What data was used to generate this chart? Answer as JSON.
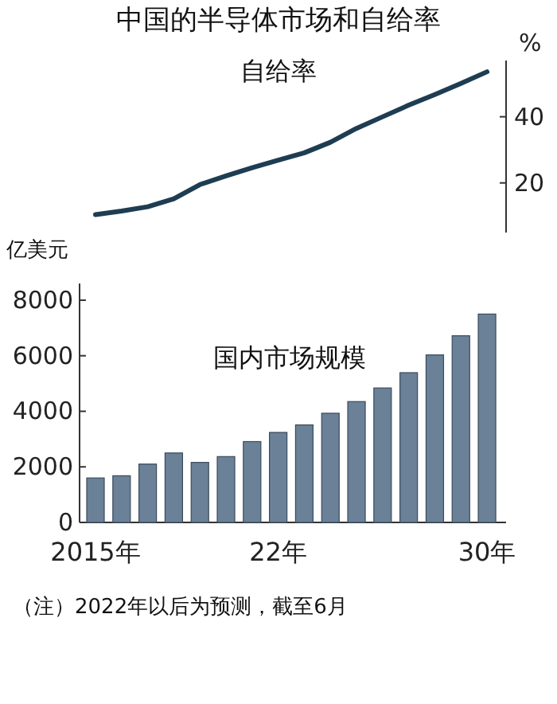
{
  "chart_data": [
    {
      "type": "line",
      "title": "中国的半导体市场和自给率",
      "ylabel": "%",
      "categories": [
        null,
        null,
        null,
        null,
        null,
        null,
        null,
        null,
        null,
        null,
        null,
        null,
        null,
        null,
        null,
        null
      ],
      "ylim": [
        5,
        57
      ],
      "yticks": [
        20,
        40
      ],
      "tick_labels": "y",
      "series": [
        {
          "name": "自给率",
          "color": "#1e3d52",
          "values": [
            10.4,
            11.5,
            12.8,
            15.2,
            19.5,
            22.1,
            24.6,
            26.9,
            29.1,
            32.3,
            36.5,
            40.0,
            43.5,
            46.7,
            50.1,
            53.6
          ]
        }
      ]
    },
    {
      "type": "bar",
      "ylabel": "亿美元",
      "categories": [
        "2015年",
        null,
        null,
        null,
        null,
        null,
        null,
        "22年",
        null,
        null,
        null,
        null,
        null,
        null,
        null,
        "30年"
      ],
      "ylim": [
        0,
        8600
      ],
      "yticks": [
        0,
        2000,
        4000,
        6000,
        8000
      ],
      "series": [
        {
          "name": "国内市场规模",
          "color": "#6a8198",
          "values": [
            1600,
            1680,
            2100,
            2500,
            2160,
            2370,
            2910,
            3240,
            3510,
            3930,
            4350,
            4840,
            5390,
            6030,
            6720,
            7500
          ]
        }
      ],
      "annotations": [
        "（注）2022年以后为预测，截至6月"
      ]
    }
  ]
}
